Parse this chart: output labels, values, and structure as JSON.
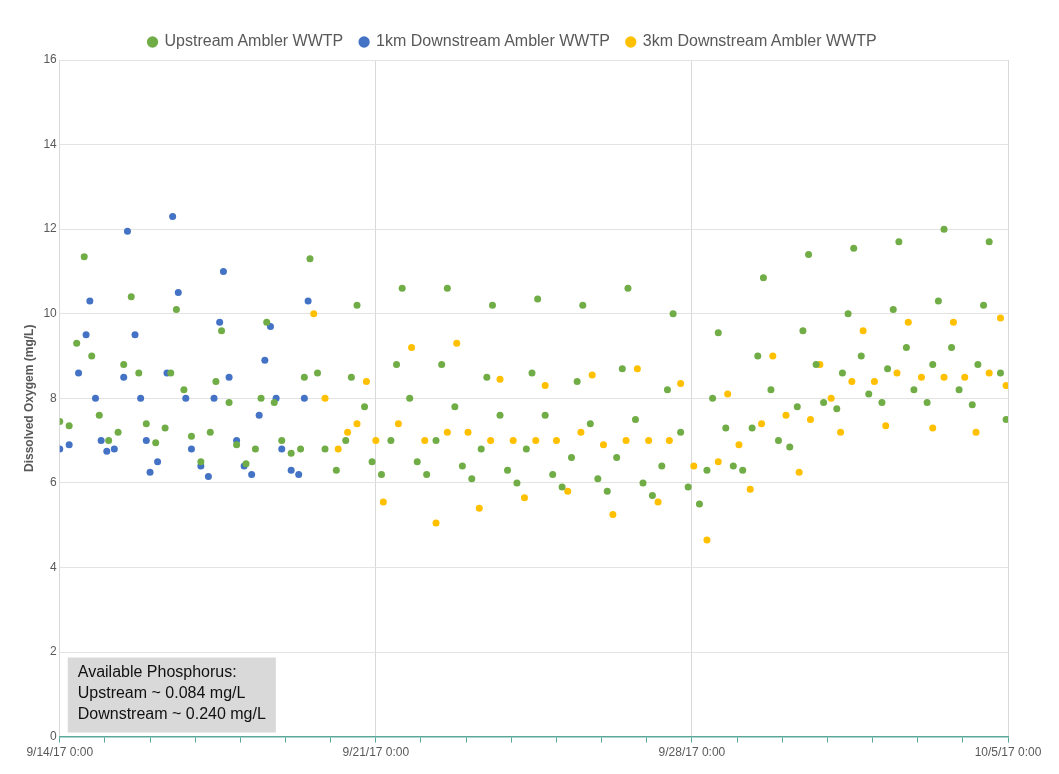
{
  "chart_data": {
    "type": "scatter",
    "ylabel": "Dissolved Oxygem (mg/L)",
    "ylim": [
      0,
      16
    ],
    "yticks": [
      0,
      2,
      4,
      6,
      8,
      10,
      12,
      14,
      16
    ],
    "xlim": [
      "--09-14T00:00",
      "--10-05T00:00"
    ],
    "xticks": [
      {
        "value": "--09-14T00:00",
        "label": "9/14/17 0:00"
      },
      {
        "value": "--09-15T00:00",
        "label": null
      },
      {
        "value": "--09-16T00:00",
        "label": null
      },
      {
        "value": "--09-17T00:00",
        "label": null
      },
      {
        "value": "--09-18T00:00",
        "label": null
      },
      {
        "value": "--09-19T00:00",
        "label": null
      },
      {
        "value": "--09-20T00:00",
        "label": null
      },
      {
        "value": "--09-21T00:00",
        "label": "9/21/17 0:00"
      },
      {
        "value": "--09-22T00:00",
        "label": null
      },
      {
        "value": "--09-23T00:00",
        "label": null
      },
      {
        "value": "--09-24T00:00",
        "label": null
      },
      {
        "value": "--09-25T00:00",
        "label": null
      },
      {
        "value": "--09-26T00:00",
        "label": null
      },
      {
        "value": "--09-27T00:00",
        "label": null
      },
      {
        "value": "--09-28T00:00",
        "label": "9/28/17 0:00"
      },
      {
        "value": "--09-29T00:00",
        "label": null
      },
      {
        "value": "--09-30T00:00",
        "label": null
      },
      {
        "value": "--10-01T00:00",
        "label": null
      },
      {
        "value": "--10-02T00:00",
        "label": null
      },
      {
        "value": "--10-03T00:00",
        "label": null
      },
      {
        "value": "--10-04T00:00",
        "label": null
      },
      {
        "value": "--10-05T00:00",
        "label": "10/5/17 0:00"
      }
    ],
    "grid": true,
    "legend": "top",
    "marker": "circle",
    "annotations": [
      "Available Phosphorus:\nUpstream ~ 0.084 mg/L\nDownstream ~ 0.240 mg/L"
    ],
    "series": [
      {
        "name": "Upstream Ambler WWTP",
        "color": "#70ad47",
        "x": [
          "--09-14T00:00",
          "--09-14T05:00",
          "--09-14T09:00",
          "--09-14T13:00",
          "--09-14T17:00",
          "--09-14T21:00",
          "--09-15T02:00",
          "--09-15T07:00",
          "--09-15T10:00",
          "--09-15T14:00",
          "--09-15T18:00",
          "--09-15T22:00",
          "--09-16T03:00",
          "--09-16T08:00",
          "--09-16T11:00",
          "--09-16T14:00",
          "--09-16T18:00",
          "--09-16T22:00",
          "--09-17T03:00",
          "--09-17T08:00",
          "--09-17T11:00",
          "--09-17T14:00",
          "--09-17T18:00",
          "--09-17T22:00",
          "--09-18T03:00",
          "--09-18T08:00",
          "--09-18T11:00",
          "--09-18T14:00",
          "--09-18T18:00",
          "--09-18T22:00",
          "--09-19T03:00",
          "--09-19T08:00",
          "--09-19T10:00",
          "--09-19T13:00",
          "--09-19T17:00",
          "--09-19T21:00",
          "--09-20T03:00",
          "--09-20T08:00",
          "--09-20T11:00",
          "--09-20T14:00",
          "--09-20T18:00",
          "--09-20T22:00",
          "--09-21T03:00",
          "--09-21T08:00",
          "--09-21T11:00",
          "--09-21T14:00",
          "--09-21T18:00",
          "--09-21T22:00",
          "--09-22T03:00",
          "--09-22T08:00",
          "--09-22T11:00",
          "--09-22T14:00",
          "--09-22T18:00",
          "--09-22T22:00",
          "--09-23T03:00",
          "--09-23T08:00",
          "--09-23T11:00",
          "--09-23T14:00",
          "--09-23T18:00",
          "--09-23T22:00",
          "--09-24T03:00",
          "--09-24T08:00",
          "--09-24T11:00",
          "--09-24T14:00",
          "--09-24T18:00",
          "--09-24T22:00",
          "--09-25T03:00",
          "--09-25T08:00",
          "--09-25T11:00",
          "--09-25T14:00",
          "--09-25T18:00",
          "--09-25T22:00",
          "--09-26T03:00",
          "--09-26T08:00",
          "--09-26T11:00",
          "--09-26T14:00",
          "--09-26T18:00",
          "--09-26T22:00",
          "--09-27T03:00",
          "--09-27T08:00",
          "--09-27T11:00",
          "--09-27T14:00",
          "--09-27T18:00",
          "--09-27T22:00",
          "--09-28T04:00",
          "--09-28T08:00",
          "--09-28T11:00",
          "--09-28T14:00",
          "--09-28T18:00",
          "--09-28T22:00",
          "--09-29T03:00",
          "--09-29T08:00",
          "--09-29T11:00",
          "--09-29T14:00",
          "--09-29T18:00",
          "--09-29T22:00",
          "--09-30T04:00",
          "--09-30T08:00",
          "--09-30T11:00",
          "--09-30T14:00",
          "--09-30T18:00",
          "--09-30T22:00",
          "--10-01T05:00",
          "--10-01T08:00",
          "--10-01T11:00",
          "--10-01T14:00",
          "--10-01T18:00",
          "--10-01T22:00",
          "--10-02T05:00",
          "--10-02T08:00",
          "--10-02T11:00",
          "--10-02T14:00",
          "--10-02T18:00",
          "--10-02T22:00",
          "--10-03T05:00",
          "--10-03T08:00",
          "--10-03T11:00",
          "--10-03T14:00",
          "--10-03T18:00",
          "--10-03T22:00",
          "--10-04T05:00",
          "--10-04T08:00",
          "--10-04T11:00",
          "--10-04T14:00",
          "--10-04T20:00",
          "--10-04T23:00"
        ],
        "values": [
          7.45,
          7.35,
          9.3,
          11.35,
          9.0,
          7.6,
          7.0,
          7.2,
          8.8,
          10.4,
          8.6,
          7.4,
          6.95,
          7.3,
          8.6,
          10.1,
          8.2,
          7.1,
          6.5,
          7.2,
          8.4,
          9.6,
          7.9,
          6.9,
          6.45,
          6.8,
          8.0,
          9.8,
          7.9,
          7.0,
          6.7,
          6.8,
          8.5,
          11.3,
          8.6,
          6.8,
          6.3,
          7.0,
          8.5,
          10.2,
          7.8,
          6.5,
          6.2,
          7.0,
          8.8,
          10.6,
          8.0,
          6.5,
          6.2,
          7.0,
          8.8,
          10.6,
          7.8,
          6.4,
          6.1,
          6.8,
          8.5,
          10.2,
          7.6,
          6.3,
          6.0,
          6.8,
          8.6,
          10.35,
          7.6,
          6.2,
          5.9,
          6.6,
          8.4,
          10.2,
          7.4,
          6.1,
          5.8,
          6.6,
          8.7,
          10.6,
          7.5,
          6.0,
          5.7,
          6.4,
          8.2,
          10.0,
          7.2,
          5.9,
          5.5,
          6.3,
          8.0,
          9.55,
          7.3,
          6.4,
          6.3,
          7.3,
          9.0,
          10.85,
          8.2,
          7.0,
          6.85,
          7.8,
          9.6,
          11.4,
          8.8,
          7.9,
          7.75,
          8.6,
          10.0,
          11.55,
          9.0,
          8.1,
          7.9,
          8.7,
          10.1,
          11.7,
          9.2,
          8.2,
          7.9,
          8.8,
          10.3,
          12.0,
          9.2,
          8.2,
          7.85,
          8.8,
          10.2,
          11.7,
          8.6,
          7.5
        ]
      },
      {
        "name": "1km Downstream Ambler WWTP",
        "color": "#4472c4",
        "x": [
          "--09-14T00:00",
          "--09-14T05:00",
          "--09-14T10:00",
          "--09-14T14:00",
          "--09-14T16:00",
          "--09-14T19:00",
          "--09-14T22:00",
          "--09-15T01:00",
          "--09-15T05:00",
          "--09-15T10:00",
          "--09-15T12:00",
          "--09-15T16:00",
          "--09-15T19:00",
          "--09-15T22:00",
          "--09-16T00:00",
          "--09-16T04:00",
          "--09-16T09:00",
          "--09-16T12:00",
          "--09-16T15:00",
          "--09-16T19:00",
          "--09-16T22:00",
          "--09-17T03:00",
          "--09-17T07:00",
          "--09-17T10:00",
          "--09-17T13:00",
          "--09-17T15:00",
          "--09-17T18:00",
          "--09-17T22:00",
          "--09-18T02:00",
          "--09-18T06:00",
          "--09-18T10:00",
          "--09-18T13:00",
          "--09-18T16:00",
          "--09-18T19:00",
          "--09-18T22:00",
          "--09-19T03:00",
          "--09-19T07:00",
          "--09-19T10:00",
          "--09-19T12:00"
        ],
        "values": [
          6.8,
          6.9,
          8.6,
          9.5,
          10.3,
          8.0,
          7.0,
          6.75,
          6.8,
          8.5,
          11.95,
          9.5,
          8.0,
          7.0,
          6.25,
          6.5,
          8.6,
          12.3,
          10.5,
          8.0,
          6.8,
          6.4,
          6.15,
          8.0,
          9.8,
          11.0,
          8.5,
          7.0,
          6.4,
          6.2,
          7.6,
          8.9,
          9.7,
          8.0,
          6.8,
          6.3,
          6.2,
          8.0,
          10.3
        ]
      },
      {
        "name": "3km Downstream Ambler WWTP",
        "color": "#ffc000",
        "x": [
          "--09-19T15:00",
          "--09-19T21:00",
          "--09-20T04:00",
          "--09-20T09:00",
          "--09-20T14:00",
          "--09-20T19:00",
          "--09-21T00:00",
          "--09-21T04:00",
          "--09-21T12:00",
          "--09-21T19:00",
          "--09-22T02:00",
          "--09-22T08:00",
          "--09-22T14:00",
          "--09-22T19:00",
          "--09-23T01:00",
          "--09-23T07:00",
          "--09-23T13:00",
          "--09-23T18:00",
          "--09-24T01:00",
          "--09-24T07:00",
          "--09-24T13:00",
          "--09-24T18:00",
          "--09-25T00:00",
          "--09-25T06:00",
          "--09-25T13:00",
          "--09-25T19:00",
          "--09-26T01:00",
          "--09-26T06:00",
          "--09-26T13:00",
          "--09-26T19:00",
          "--09-27T01:00",
          "--09-27T06:00",
          "--09-27T12:00",
          "--09-27T18:00",
          "--09-28T01:00",
          "--09-28T08:00",
          "--09-28T14:00",
          "--09-28T19:00",
          "--09-29T01:00",
          "--09-29T07:00",
          "--09-29T13:00",
          "--09-29T19:00",
          "--09-30T02:00",
          "--09-30T09:00",
          "--09-30T15:00",
          "--09-30T20:00",
          "--10-01T02:00",
          "--10-01T07:00",
          "--10-01T13:00",
          "--10-01T19:00",
          "--10-02T01:00",
          "--10-02T07:00",
          "--10-02T13:00",
          "--10-02T19:00",
          "--10-03T02:00",
          "--10-03T08:00",
          "--10-03T14:00",
          "--10-03T19:00",
          "--10-04T01:00",
          "--10-04T07:00",
          "--10-04T14:00",
          "--10-04T20:00",
          "--10-04T23:00"
        ],
        "values": [
          10.0,
          8.0,
          6.8,
          7.2,
          7.4,
          8.4,
          7.0,
          5.55,
          7.4,
          9.2,
          7.0,
          5.05,
          7.2,
          9.3,
          7.2,
          5.4,
          7.0,
          8.45,
          7.0,
          5.65,
          7.0,
          8.3,
          7.0,
          5.8,
          7.2,
          8.55,
          6.9,
          5.25,
          7.0,
          8.7,
          7.0,
          5.55,
          7.0,
          8.35,
          6.4,
          4.65,
          6.5,
          8.1,
          6.9,
          5.85,
          7.4,
          9.0,
          7.6,
          6.25,
          7.5,
          8.8,
          8.0,
          7.2,
          8.4,
          9.6,
          8.4,
          7.35,
          8.6,
          9.8,
          8.5,
          7.3,
          8.5,
          9.8,
          8.5,
          7.2,
          8.6,
          9.9,
          8.3
        ]
      }
    ]
  }
}
